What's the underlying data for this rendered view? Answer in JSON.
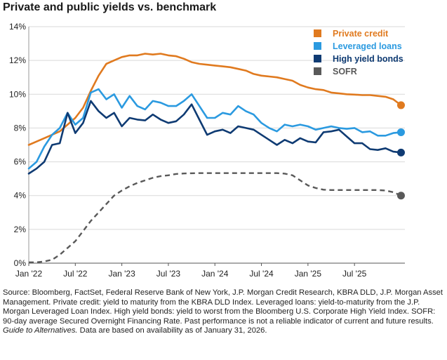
{
  "chart_data": {
    "type": "line",
    "title": "Private and public yields vs. benchmark",
    "xlabel": "",
    "ylabel": "",
    "ylim": [
      0,
      14
    ],
    "y_ticks": [
      "0%",
      "2%",
      "4%",
      "6%",
      "8%",
      "10%",
      "12%",
      "14%"
    ],
    "y_tick_values": [
      0,
      2,
      4,
      6,
      8,
      10,
      12,
      14
    ],
    "x_ticks": [
      "Jan '22",
      "Jul '22",
      "Jan '23",
      "Jul '23",
      "Jan '24",
      "Jul '24",
      "Jan '25",
      "Jul '25"
    ],
    "x_tick_values": [
      0,
      6,
      12,
      18,
      24,
      30,
      36,
      42
    ],
    "x_unit": "months since Jan 2022",
    "xlim": [
      0,
      48.5
    ],
    "grid": "horizontal",
    "legend_position": "top-right",
    "series": [
      {
        "name": "Private credit",
        "color": "#E07A1F",
        "style": "solid",
        "end_marker": true,
        "x": [
          0,
          1,
          2,
          3,
          4,
          5,
          6,
          7,
          8,
          9,
          10,
          11,
          12,
          13,
          14,
          15,
          16,
          17,
          18,
          19,
          20,
          21,
          22,
          23,
          24,
          25,
          26,
          27,
          28,
          29,
          30,
          31,
          32,
          33,
          34,
          35,
          36,
          37,
          38,
          39,
          40,
          41,
          42,
          43,
          44,
          45,
          46,
          47,
          48
        ],
        "values": [
          7.0,
          7.2,
          7.4,
          7.6,
          7.8,
          8.2,
          8.6,
          9.2,
          10.2,
          11.1,
          11.8,
          12.0,
          12.2,
          12.3,
          12.3,
          12.4,
          12.35,
          12.4,
          12.3,
          12.25,
          12.1,
          11.9,
          11.8,
          11.75,
          11.7,
          11.65,
          11.6,
          11.5,
          11.4,
          11.2,
          11.1,
          11.05,
          11.0,
          10.9,
          10.8,
          10.55,
          10.4,
          10.3,
          10.25,
          10.1,
          10.05,
          10.0,
          9.98,
          9.95,
          9.95,
          9.9,
          9.85,
          9.7,
          9.35
        ]
      },
      {
        "name": "Leveraged loans",
        "color": "#2B9AE0",
        "style": "solid",
        "end_marker": true,
        "x": [
          0,
          1,
          2,
          3,
          4,
          5,
          6,
          7,
          8,
          9,
          10,
          11,
          12,
          13,
          14,
          15,
          16,
          17,
          18,
          19,
          20,
          21,
          22,
          23,
          24,
          25,
          26,
          27,
          28,
          29,
          30,
          31,
          32,
          33,
          34,
          35,
          36,
          37,
          38,
          39,
          40,
          41,
          42,
          43,
          44,
          45,
          46,
          47,
          48
        ],
        "values": [
          5.6,
          6.0,
          6.9,
          7.6,
          8.0,
          8.9,
          8.2,
          8.6,
          10.1,
          10.3,
          9.7,
          10.0,
          9.2,
          9.9,
          9.3,
          9.1,
          9.6,
          9.5,
          9.3,
          9.3,
          9.6,
          10.0,
          9.3,
          8.6,
          8.6,
          8.9,
          8.8,
          9.3,
          9.0,
          8.8,
          8.3,
          8.0,
          7.8,
          8.2,
          8.1,
          8.2,
          8.1,
          7.9,
          8.0,
          8.1,
          8.0,
          7.95,
          8.0,
          7.75,
          7.8,
          7.55,
          7.55,
          7.7,
          7.75
        ]
      },
      {
        "name": "High yield bonds",
        "color": "#0F3B73",
        "style": "solid",
        "end_marker": true,
        "x": [
          0,
          1,
          2,
          3,
          4,
          5,
          6,
          7,
          8,
          9,
          10,
          11,
          12,
          13,
          14,
          15,
          16,
          17,
          18,
          19,
          20,
          21,
          22,
          23,
          24,
          25,
          26,
          27,
          28,
          29,
          30,
          31,
          32,
          33,
          34,
          35,
          36,
          37,
          38,
          39,
          40,
          41,
          42,
          43,
          44,
          45,
          46,
          47,
          48
        ],
        "values": [
          5.3,
          5.6,
          6.0,
          7.0,
          7.1,
          8.9,
          7.7,
          8.3,
          9.6,
          9.0,
          8.6,
          8.9,
          8.1,
          8.6,
          8.5,
          8.45,
          8.8,
          8.5,
          8.3,
          8.4,
          8.8,
          9.4,
          8.5,
          7.6,
          7.8,
          7.9,
          7.7,
          8.1,
          8.0,
          7.9,
          7.6,
          7.3,
          7.0,
          7.3,
          7.1,
          7.4,
          7.2,
          7.15,
          7.75,
          7.8,
          7.9,
          7.5,
          7.1,
          7.1,
          6.75,
          6.7,
          6.8,
          6.6,
          6.55
        ]
      },
      {
        "name": "SOFR",
        "color": "#595959",
        "style": "dashed",
        "end_marker": true,
        "x": [
          0,
          1,
          2,
          3,
          4,
          5,
          6,
          7,
          8,
          9,
          10,
          11,
          12,
          13,
          14,
          15,
          16,
          17,
          18,
          19,
          20,
          21,
          22,
          23,
          24,
          25,
          26,
          27,
          28,
          29,
          30,
          31,
          32,
          33,
          34,
          35,
          36,
          37,
          38,
          39,
          40,
          41,
          42,
          43,
          44,
          45,
          46,
          47,
          48
        ],
        "values": [
          0.05,
          0.05,
          0.1,
          0.2,
          0.5,
          0.9,
          1.3,
          1.9,
          2.5,
          3.0,
          3.5,
          4.0,
          4.3,
          4.55,
          4.75,
          4.9,
          5.05,
          5.15,
          5.2,
          5.28,
          5.31,
          5.32,
          5.33,
          5.33,
          5.33,
          5.33,
          5.33,
          5.33,
          5.33,
          5.33,
          5.33,
          5.33,
          5.33,
          5.3,
          5.2,
          4.9,
          4.6,
          4.45,
          4.35,
          4.33,
          4.33,
          4.33,
          4.33,
          4.33,
          4.33,
          4.33,
          4.3,
          4.2,
          4.0
        ]
      }
    ]
  },
  "source": {
    "line1": "Source: Bloomberg, FactSet, Federal Reserve Bank of New York, J.P. Morgan Credit Research, KBRA DLD, J.P. Morgan Asset Management. Private credit: yield to maturity from the KBRA DLD Index. Leveraged loans: yield-to-maturity from the J.P. Morgan Leveraged Loan Index. High yield bonds: yield to worst from the Bloomberg U.S. Corporate High Yield Index. SOFR: 90-day average Secured Overnight Financing Rate. Past performance is not a reliable indicator of current and future results.",
    "guide": "Guide to Alternatives.",
    "line2": "Data are based on availability as of January 31, 2026."
  }
}
